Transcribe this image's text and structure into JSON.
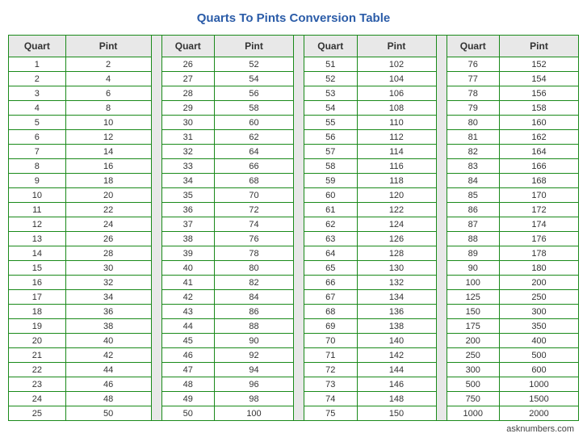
{
  "title": "Quarts To Pints Conversion Table",
  "footer": "asknumbers.com",
  "headers": {
    "quart": "Quart",
    "pint": "Pint"
  },
  "columns": [
    {
      "rows": [
        {
          "q": 1,
          "p": 2
        },
        {
          "q": 2,
          "p": 4
        },
        {
          "q": 3,
          "p": 6
        },
        {
          "q": 4,
          "p": 8
        },
        {
          "q": 5,
          "p": 10
        },
        {
          "q": 6,
          "p": 12
        },
        {
          "q": 7,
          "p": 14
        },
        {
          "q": 8,
          "p": 16
        },
        {
          "q": 9,
          "p": 18
        },
        {
          "q": 10,
          "p": 20
        },
        {
          "q": 11,
          "p": 22
        },
        {
          "q": 12,
          "p": 24
        },
        {
          "q": 13,
          "p": 26
        },
        {
          "q": 14,
          "p": 28
        },
        {
          "q": 15,
          "p": 30
        },
        {
          "q": 16,
          "p": 32
        },
        {
          "q": 17,
          "p": 34
        },
        {
          "q": 18,
          "p": 36
        },
        {
          "q": 19,
          "p": 38
        },
        {
          "q": 20,
          "p": 40
        },
        {
          "q": 21,
          "p": 42
        },
        {
          "q": 22,
          "p": 44
        },
        {
          "q": 23,
          "p": 46
        },
        {
          "q": 24,
          "p": 48
        },
        {
          "q": 25,
          "p": 50
        }
      ]
    },
    {
      "rows": [
        {
          "q": 26,
          "p": 52
        },
        {
          "q": 27,
          "p": 54
        },
        {
          "q": 28,
          "p": 56
        },
        {
          "q": 29,
          "p": 58
        },
        {
          "q": 30,
          "p": 60
        },
        {
          "q": 31,
          "p": 62
        },
        {
          "q": 32,
          "p": 64
        },
        {
          "q": 33,
          "p": 66
        },
        {
          "q": 34,
          "p": 68
        },
        {
          "q": 35,
          "p": 70
        },
        {
          "q": 36,
          "p": 72
        },
        {
          "q": 37,
          "p": 74
        },
        {
          "q": 38,
          "p": 76
        },
        {
          "q": 39,
          "p": 78
        },
        {
          "q": 40,
          "p": 80
        },
        {
          "q": 41,
          "p": 82
        },
        {
          "q": 42,
          "p": 84
        },
        {
          "q": 43,
          "p": 86
        },
        {
          "q": 44,
          "p": 88
        },
        {
          "q": 45,
          "p": 90
        },
        {
          "q": 46,
          "p": 92
        },
        {
          "q": 47,
          "p": 94
        },
        {
          "q": 48,
          "p": 96
        },
        {
          "q": 49,
          "p": 98
        },
        {
          "q": 50,
          "p": 100
        }
      ]
    },
    {
      "rows": [
        {
          "q": 51,
          "p": 102
        },
        {
          "q": 52,
          "p": 104
        },
        {
          "q": 53,
          "p": 106
        },
        {
          "q": 54,
          "p": 108
        },
        {
          "q": 55,
          "p": 110
        },
        {
          "q": 56,
          "p": 112
        },
        {
          "q": 57,
          "p": 114
        },
        {
          "q": 58,
          "p": 116
        },
        {
          "q": 59,
          "p": 118
        },
        {
          "q": 60,
          "p": 120
        },
        {
          "q": 61,
          "p": 122
        },
        {
          "q": 62,
          "p": 124
        },
        {
          "q": 63,
          "p": 126
        },
        {
          "q": 64,
          "p": 128
        },
        {
          "q": 65,
          "p": 130
        },
        {
          "q": 66,
          "p": 132
        },
        {
          "q": 67,
          "p": 134
        },
        {
          "q": 68,
          "p": 136
        },
        {
          "q": 69,
          "p": 138
        },
        {
          "q": 70,
          "p": 140
        },
        {
          "q": 71,
          "p": 142
        },
        {
          "q": 72,
          "p": 144
        },
        {
          "q": 73,
          "p": 146
        },
        {
          "q": 74,
          "p": 148
        },
        {
          "q": 75,
          "p": 150
        }
      ]
    },
    {
      "rows": [
        {
          "q": 76,
          "p": 152
        },
        {
          "q": 77,
          "p": 154
        },
        {
          "q": 78,
          "p": 156
        },
        {
          "q": 79,
          "p": 158
        },
        {
          "q": 80,
          "p": 160
        },
        {
          "q": 81,
          "p": 162
        },
        {
          "q": 82,
          "p": 164
        },
        {
          "q": 83,
          "p": 166
        },
        {
          "q": 84,
          "p": 168
        },
        {
          "q": 85,
          "p": 170
        },
        {
          "q": 86,
          "p": 172
        },
        {
          "q": 87,
          "p": 174
        },
        {
          "q": 88,
          "p": 176
        },
        {
          "q": 89,
          "p": 178
        },
        {
          "q": 90,
          "p": 180
        },
        {
          "q": 100,
          "p": 200
        },
        {
          "q": 125,
          "p": 250
        },
        {
          "q": 150,
          "p": 300
        },
        {
          "q": 175,
          "p": 350
        },
        {
          "q": 200,
          "p": 400
        },
        {
          "q": 250,
          "p": 500
        },
        {
          "q": 300,
          "p": 600
        },
        {
          "q": 500,
          "p": 1000
        },
        {
          "q": 750,
          "p": 1500
        },
        {
          "q": 1000,
          "p": 2000
        }
      ]
    }
  ]
}
